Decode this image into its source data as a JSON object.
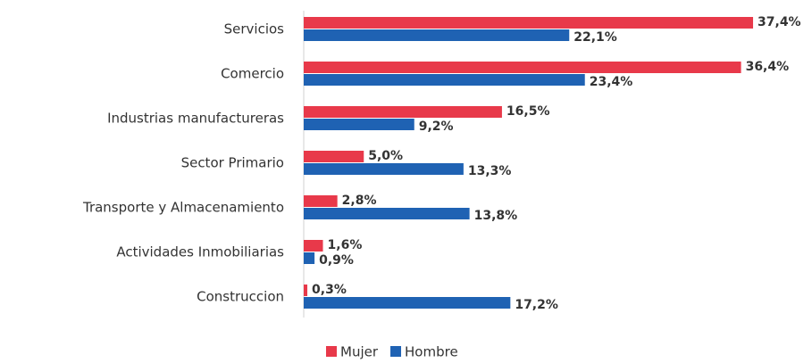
{
  "chart_data": {
    "type": "bar",
    "orientation": "horizontal",
    "categories": [
      "Servicios",
      "Comercio",
      "Industrias manufactureras",
      "Sector Primario",
      "Transporte y Almacenamiento",
      "Actividades Inmobiliarias",
      "Construccion"
    ],
    "series": [
      {
        "name": "Mujer",
        "color": "#e8394a",
        "values": [
          37.4,
          36.4,
          16.5,
          5.0,
          2.8,
          1.6,
          0.3
        ],
        "value_labels": [
          "37,4%",
          "36,4%",
          "16,5%",
          "5,0%",
          "2,8%",
          "1,6%",
          "0,3%"
        ]
      },
      {
        "name": "Hombre",
        "color": "#1f62b3",
        "values": [
          22.1,
          23.4,
          9.2,
          13.3,
          13.8,
          0.9,
          17.2
        ],
        "value_labels": [
          "22,1%",
          "23,4%",
          "9,2%",
          "13,3%",
          "13,8%",
          "0,9%",
          "17,2%"
        ]
      }
    ],
    "xlim": [
      0,
      40
    ],
    "legend": "bottom"
  }
}
